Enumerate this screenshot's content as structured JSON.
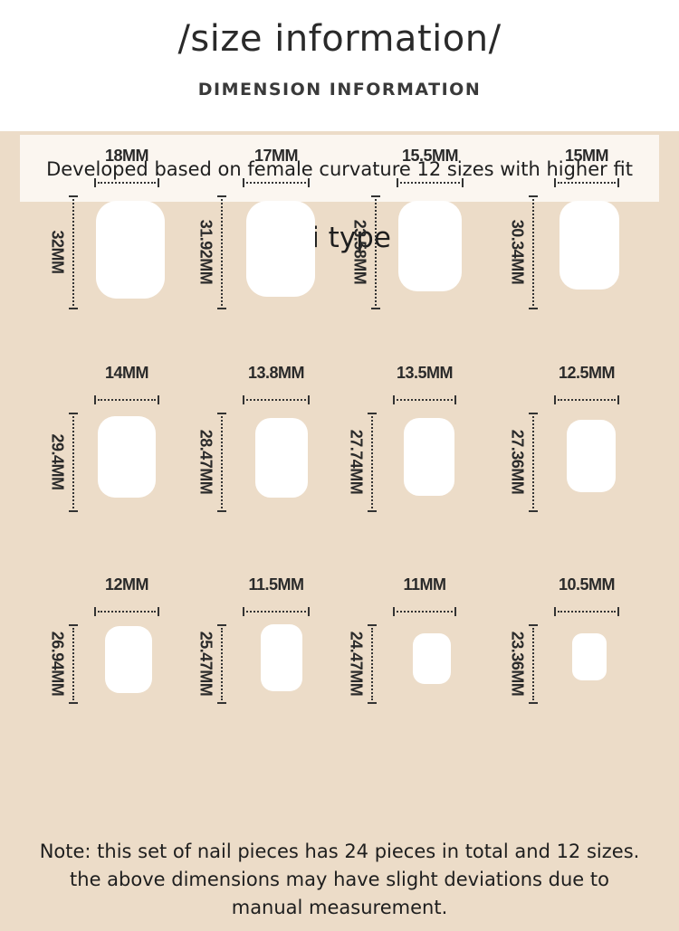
{
  "header": {
    "title": "/size information/",
    "subtitle": "DIMENSION INFORMATION"
  },
  "banner": {
    "text": "Developed based on female curvature 12 sizes with higher fit"
  },
  "type_heading": "Mini type a",
  "sizes": [
    {
      "width": "18MM",
      "height": "32MM"
    },
    {
      "width": "17MM",
      "height": "31.92MM"
    },
    {
      "width": "15.5MM",
      "height": "23.58MM"
    },
    {
      "width": "15MM",
      "height": "30.34MM"
    },
    {
      "width": "14MM",
      "height": "29.4MM"
    },
    {
      "width": "13.8MM",
      "height": "28.47MM"
    },
    {
      "width": "13.5MM",
      "height": "27.74MM"
    },
    {
      "width": "12.5MM",
      "height": "27.36MM"
    },
    {
      "width": "12MM",
      "height": "26.94MM"
    },
    {
      "width": "11.5MM",
      "height": "25.47MM"
    },
    {
      "width": "11MM",
      "height": "24.47MM"
    },
    {
      "width": "10.5MM",
      "height": "23.36MM"
    }
  ],
  "note": {
    "line1": "Note: this set of nail pieces has 24 pieces in total and 12 sizes.",
    "line2": "the above dimensions may have slight deviations due to",
    "line3": "manual measurement."
  },
  "colors": {
    "panel_background": "#ecdcc8",
    "banner_background": "#fbf6f0",
    "nail_fill": "#ffffff"
  }
}
